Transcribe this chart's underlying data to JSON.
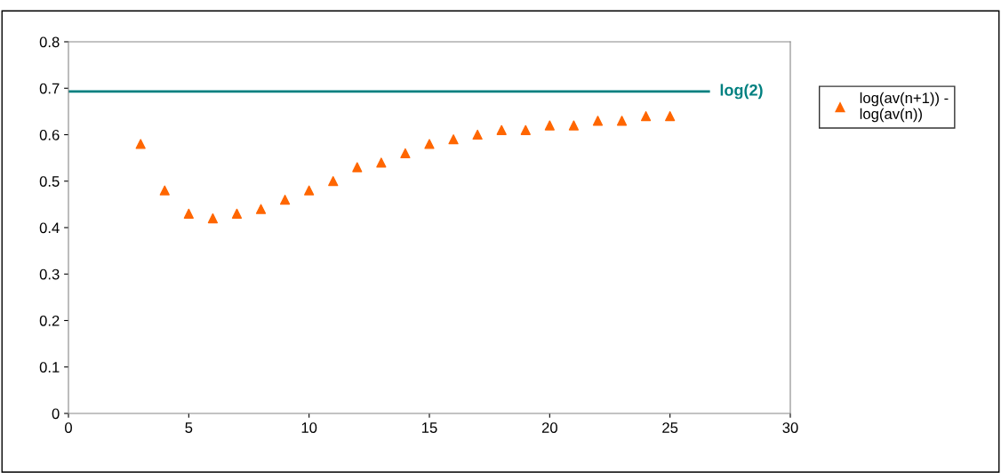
{
  "chart_data": {
    "type": "scatter",
    "x": [
      3,
      4,
      5,
      6,
      7,
      8,
      9,
      10,
      11,
      12,
      13,
      14,
      15,
      16,
      17,
      18,
      19,
      20,
      21,
      22,
      23,
      24,
      25
    ],
    "series": [
      {
        "name": "log(av(n+1)) - log(av(n))",
        "color": "#ff6600",
        "values": [
          0.58,
          0.48,
          0.43,
          0.42,
          0.43,
          0.44,
          0.46,
          0.48,
          0.5,
          0.53,
          0.54,
          0.56,
          0.58,
          0.59,
          0.6,
          0.61,
          0.61,
          0.62,
          0.62,
          0.63,
          0.63,
          0.64,
          0.64
        ]
      }
    ],
    "marker": "triangle",
    "xlim": [
      0,
      30
    ],
    "ylim": [
      0,
      0.8
    ],
    "xticks": [
      0,
      5,
      10,
      15,
      20,
      25,
      30
    ],
    "yticks": [
      0,
      0.1,
      0.2,
      0.3,
      0.4,
      0.5,
      0.6,
      0.7,
      0.8
    ],
    "ref_lines": [
      {
        "axis": "y",
        "value": 0.693,
        "label": "log(2)",
        "color": "#008080"
      }
    ],
    "grid": false,
    "legend": "right"
  }
}
